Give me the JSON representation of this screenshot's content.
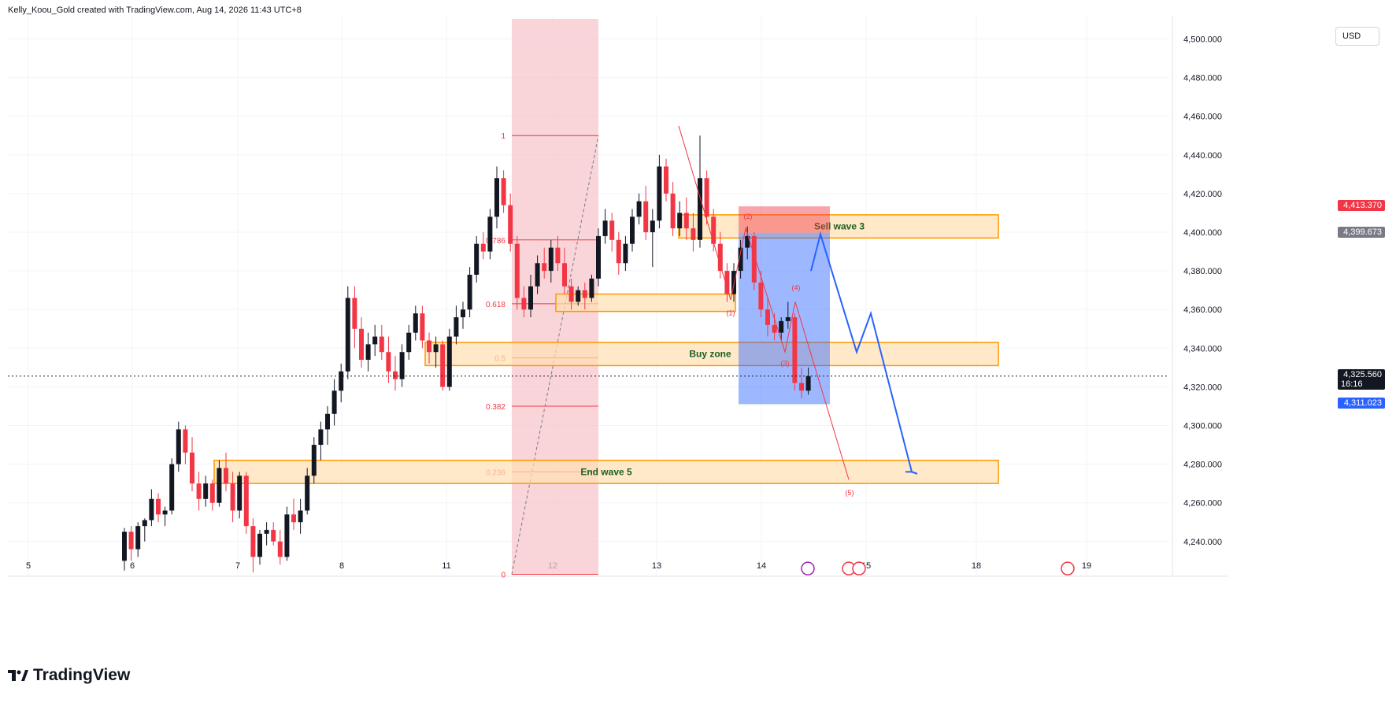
{
  "header": {
    "attribution": "Kelly_Koou_Gold created with TradingView.com, Aug 14, 2026 11:43 UTC+8"
  },
  "currency": "USD",
  "branding": {
    "logo_text": "TradingView"
  },
  "colors": {
    "up": "#131722",
    "down": "#f23645",
    "zone": "#ff9800",
    "fib": "#f23645",
    "blue": "#2962ff",
    "projection": "#2962ff"
  },
  "price_labels": {
    "sell_target": {
      "value": "4,413.370",
      "color": "#f23645"
    },
    "entry": {
      "value": "4,399.673",
      "color": "#787b86"
    },
    "last": {
      "value": "4,325.560",
      "sub": "16:16",
      "color": "#131722"
    },
    "stop_target": {
      "value": "4,311.023",
      "color": "#2962ff"
    }
  },
  "annotations": {
    "sell_wave_3": "Sell wave 3",
    "buy_zone": "Buy zone",
    "end_wave_5": "End wave 5",
    "waves": [
      "(1)",
      "(2)",
      "(3)",
      "(4)",
      "(5)"
    ]
  },
  "fib_levels": [
    {
      "label": "1",
      "price": 4450
    },
    {
      "label": "0.786",
      "price": 4396
    },
    {
      "label": "0.618",
      "price": 4363
    },
    {
      "label": "0.5",
      "price": 4335
    },
    {
      "label": "0.382",
      "price": 4310
    },
    {
      "label": "0.236",
      "price": 4276
    },
    {
      "label": "0",
      "price": 4223
    }
  ],
  "chart_data": {
    "type": "candlestick",
    "title": "",
    "xlabel": "",
    "ylabel": "",
    "x_ticks": [
      "5",
      "6",
      "7",
      "8",
      "11",
      "12",
      "13",
      "14",
      "15",
      "18",
      "19"
    ],
    "y_ticks": [
      "4,240.000",
      "4,260.000",
      "4,280.000",
      "4,300.000",
      "4,320.000",
      "4,340.000",
      "4,360.000",
      "4,380.000",
      "4,400.000",
      "4,420.000",
      "4,440.000",
      "4,460.000",
      "4,480.000",
      "4,500.000"
    ],
    "ylim": [
      4222,
      4512
    ],
    "grid": true,
    "zones": [
      {
        "name": "Sell wave 3",
        "low": 4397,
        "high": 4409
      },
      {
        "name": "Buy zone",
        "low": 4331,
        "high": 4343
      },
      {
        "name": "End wave 5",
        "low": 4270,
        "high": 4282
      }
    ],
    "projection_path_prices": [
      4380,
      4399,
      4338,
      4358,
      4276
    ],
    "wave_points": [
      {
        "label": "(1)",
        "price": 4365
      },
      {
        "label": "(2)",
        "price": 4402
      },
      {
        "label": "(3)",
        "price": 4338
      },
      {
        "label": "(4)",
        "price": 4364
      },
      {
        "label": "(5)",
        "price": 4272
      }
    ],
    "candles": [
      [
        4230,
        4247,
        4225,
        4245
      ],
      [
        4245,
        4248,
        4230,
        4236
      ],
      [
        4236,
        4250,
        4232,
        4248
      ],
      [
        4248,
        4252,
        4240,
        4251
      ],
      [
        4251,
        4267,
        4248,
        4262
      ],
      [
        4262,
        4265,
        4250,
        4254
      ],
      [
        4254,
        4258,
        4248,
        4256
      ],
      [
        4256,
        4283,
        4254,
        4280
      ],
      [
        4280,
        4302,
        4276,
        4298
      ],
      [
        4298,
        4300,
        4280,
        4286
      ],
      [
        4286,
        4294,
        4266,
        4270
      ],
      [
        4270,
        4276,
        4256,
        4262
      ],
      [
        4262,
        4274,
        4258,
        4270
      ],
      [
        4270,
        4272,
        4256,
        4260
      ],
      [
        4260,
        4282,
        4258,
        4278
      ],
      [
        4278,
        4286,
        4266,
        4270
      ],
      [
        4270,
        4276,
        4250,
        4256
      ],
      [
        4256,
        4276,
        4252,
        4274
      ],
      [
        4274,
        4276,
        4244,
        4248
      ],
      [
        4248,
        4252,
        4224,
        4232
      ],
      [
        4232,
        4246,
        4228,
        4244
      ],
      [
        4244,
        4250,
        4238,
        4246
      ],
      [
        4246,
        4250,
        4238,
        4240
      ],
      [
        4240,
        4246,
        4228,
        4232
      ],
      [
        4232,
        4258,
        4230,
        4254
      ],
      [
        4254,
        4262,
        4246,
        4250
      ],
      [
        4250,
        4262,
        4244,
        4256
      ],
      [
        4256,
        4278,
        4254,
        4274
      ],
      [
        4274,
        4294,
        4270,
        4290
      ],
      [
        4290,
        4302,
        4282,
        4298
      ],
      [
        4298,
        4310,
        4290,
        4306
      ],
      [
        4306,
        4324,
        4300,
        4318
      ],
      [
        4318,
        4332,
        4312,
        4328
      ],
      [
        4328,
        4372,
        4324,
        4366
      ],
      [
        4366,
        4372,
        4340,
        4350
      ],
      [
        4350,
        4356,
        4330,
        4334
      ],
      [
        4334,
        4348,
        4328,
        4342
      ],
      [
        4342,
        4352,
        4336,
        4346
      ],
      [
        4346,
        4352,
        4334,
        4338
      ],
      [
        4338,
        4346,
        4322,
        4328
      ],
      [
        4328,
        4336,
        4318,
        4324
      ],
      [
        4324,
        4342,
        4320,
        4338
      ],
      [
        4338,
        4352,
        4334,
        4348
      ],
      [
        4348,
        4362,
        4344,
        4358
      ],
      [
        4358,
        4362,
        4340,
        4344
      ],
      [
        4344,
        4348,
        4332,
        4338
      ],
      [
        4338,
        4346,
        4330,
        4342
      ],
      [
        4342,
        4344,
        4318,
        4320
      ],
      [
        4320,
        4350,
        4318,
        4346
      ],
      [
        4346,
        4362,
        4342,
        4356
      ],
      [
        4356,
        4364,
        4350,
        4360
      ],
      [
        4360,
        4382,
        4356,
        4378
      ],
      [
        4378,
        4398,
        4374,
        4394
      ],
      [
        4394,
        4400,
        4386,
        4390
      ],
      [
        4390,
        4412,
        4386,
        4408
      ],
      [
        4408,
        4434,
        4402,
        4428
      ],
      [
        4428,
        4432,
        4410,
        4414
      ],
      [
        4414,
        4420,
        4390,
        4394
      ],
      [
        4394,
        4398,
        4360,
        4366
      ],
      [
        4366,
        4372,
        4356,
        4360
      ],
      [
        4360,
        4378,
        4356,
        4372
      ],
      [
        4372,
        4388,
        4368,
        4384
      ],
      [
        4384,
        4392,
        4376,
        4380
      ],
      [
        4380,
        4396,
        4374,
        4392
      ],
      [
        4392,
        4398,
        4380,
        4384
      ],
      [
        4384,
        4392,
        4368,
        4372
      ],
      [
        4372,
        4376,
        4360,
        4364
      ],
      [
        4364,
        4372,
        4362,
        4370
      ],
      [
        4370,
        4374,
        4360,
        4366
      ],
      [
        4366,
        4378,
        4364,
        4376
      ],
      [
        4376,
        4402,
        4372,
        4398
      ],
      [
        4398,
        4412,
        4394,
        4406
      ],
      [
        4406,
        4410,
        4390,
        4396
      ],
      [
        4396,
        4400,
        4378,
        4384
      ],
      [
        4384,
        4398,
        4380,
        4394
      ],
      [
        4394,
        4412,
        4390,
        4408
      ],
      [
        4408,
        4420,
        4404,
        4416
      ],
      [
        4416,
        4424,
        4396,
        4400
      ],
      [
        4400,
        4412,
        4382,
        4406
      ],
      [
        4406,
        4440,
        4402,
        4434
      ],
      [
        4434,
        4438,
        4416,
        4420
      ],
      [
        4420,
        4426,
        4398,
        4402
      ],
      [
        4402,
        4416,
        4398,
        4410
      ],
      [
        4410,
        4418,
        4396,
        4402
      ],
      [
        4402,
        4410,
        4390,
        4396
      ],
      [
        4396,
        4450,
        4392,
        4428
      ],
      [
        4428,
        4432,
        4404,
        4408
      ],
      [
        4408,
        4412,
        4390,
        4394
      ],
      [
        4394,
        4400,
        4376,
        4380
      ],
      [
        4380,
        4384,
        4364,
        4368
      ],
      [
        4368,
        4384,
        4364,
        4380
      ],
      [
        4380,
        4396,
        4376,
        4392
      ],
      [
        4392,
        4403,
        4386,
        4398
      ],
      [
        4398,
        4400,
        4370,
        4374
      ],
      [
        4374,
        4380,
        4356,
        4360
      ],
      [
        4360,
        4366,
        4346,
        4352
      ],
      [
        4352,
        4358,
        4344,
        4348
      ],
      [
        4348,
        4356,
        4344,
        4354
      ],
      [
        4354,
        4364,
        4350,
        4356
      ],
      [
        4356,
        4358,
        4318,
        4322
      ],
      [
        4322,
        4330,
        4314,
        4318
      ],
      [
        4318,
        4330,
        4316,
        4325.56
      ]
    ]
  }
}
